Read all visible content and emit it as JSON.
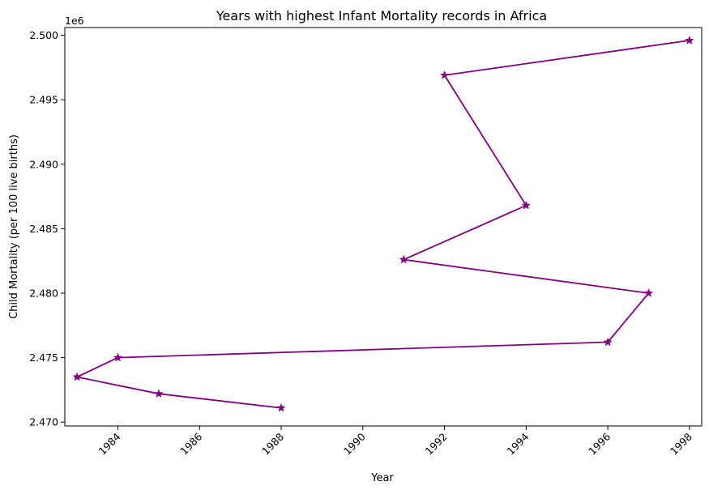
{
  "chart_data": {
    "type": "line",
    "title": "Years with highest Infant Mortality records in Africa",
    "xlabel": "Year",
    "ylabel": "Child Mortality (per 100 live births)",
    "y_offset_label": "1e6",
    "xlim": [
      1982.7,
      1998.3
    ],
    "ylim": [
      2469.7,
      2500.6
    ],
    "xticks": [
      1984,
      1986,
      1988,
      1990,
      1992,
      1994,
      1996,
      1998
    ],
    "xtick_labels": [
      "1984",
      "1986",
      "1988",
      "1990",
      "1992",
      "1994",
      "1996",
      "1998"
    ],
    "xtick_rotation": 45,
    "yticks": [
      2470,
      2475,
      2480,
      2485,
      2490,
      2495,
      2500
    ],
    "ytick_labels": [
      "2.470",
      "2.475",
      "2.480",
      "2.485",
      "2.490",
      "2.495",
      "2.500"
    ],
    "y_unit_note": "y values in thousands (tick labels x 1e6 scale)",
    "grid": false,
    "marker": "star",
    "color": "#800080",
    "series": [
      {
        "points": [
          {
            "x": 1998,
            "y": 2499.6
          },
          {
            "x": 1992,
            "y": 2496.9
          },
          {
            "x": 1994,
            "y": 2486.8
          },
          {
            "x": 1991,
            "y": 2482.6
          },
          {
            "x": 1997,
            "y": 2480.0
          },
          {
            "x": 1996,
            "y": 2476.2
          },
          {
            "x": 1984,
            "y": 2475.0
          },
          {
            "x": 1983,
            "y": 2473.5
          },
          {
            "x": 1985,
            "y": 2472.2
          },
          {
            "x": 1988,
            "y": 2471.1
          }
        ]
      }
    ]
  }
}
